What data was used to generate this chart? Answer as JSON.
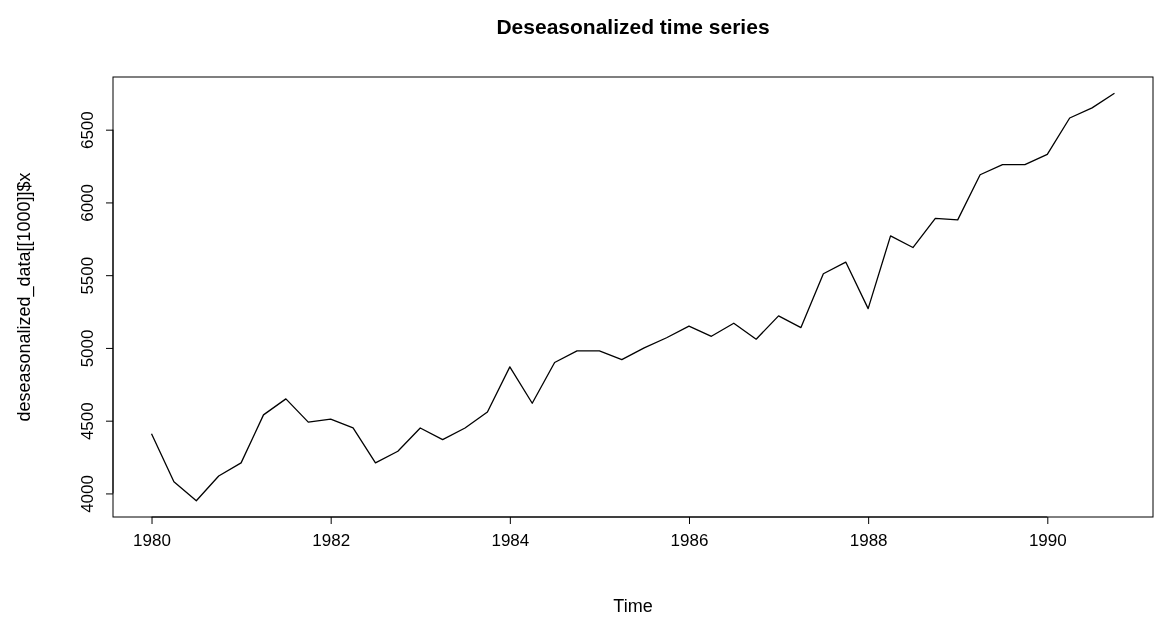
{
  "chart_data": {
    "type": "line",
    "title": "Deseasonalized time series",
    "xlabel": "Time",
    "ylabel": "deseasonalized_data[[1000]]$x",
    "x": [
      1980,
      1980.25,
      1980.5,
      1980.75,
      1981,
      1981.25,
      1981.5,
      1981.75,
      1982,
      1982.25,
      1982.5,
      1982.75,
      1983,
      1983.25,
      1983.5,
      1983.75,
      1984,
      1984.25,
      1984.5,
      1984.75,
      1985,
      1985.25,
      1985.5,
      1985.75,
      1986,
      1986.25,
      1986.5,
      1986.75,
      1987,
      1987.25,
      1987.5,
      1987.75,
      1988,
      1988.25,
      1988.5,
      1988.75,
      1989,
      1989.25,
      1989.5,
      1989.75,
      1990,
      1990.25,
      1990.5,
      1990.75
    ],
    "series": [
      {
        "color": "#000000",
        "values": [
          4410,
          4080,
          3950,
          4120,
          4210,
          4540,
          4650,
          4490,
          4510,
          4450,
          4210,
          4290,
          4450,
          4370,
          4450,
          4560,
          4870,
          4620,
          4900,
          4980,
          4980,
          4920,
          5000,
          5070,
          5150,
          5080,
          5170,
          5060,
          5220,
          5140,
          5510,
          5590,
          5270,
          5770,
          5690,
          5890,
          5880,
          6190,
          6260,
          6260,
          6330,
          6580,
          6650,
          6750
        ]
      }
    ],
    "xlim": [
      1979.57,
      1991.18
    ],
    "ylim": [
      3838,
      6862
    ],
    "xticks": [
      1980,
      1982,
      1984,
      1986,
      1988,
      1990
    ],
    "yticks": [
      4000,
      4500,
      5000,
      5500,
      6000,
      6500
    ],
    "grid": false,
    "marker": "none",
    "line_style": "solid"
  }
}
